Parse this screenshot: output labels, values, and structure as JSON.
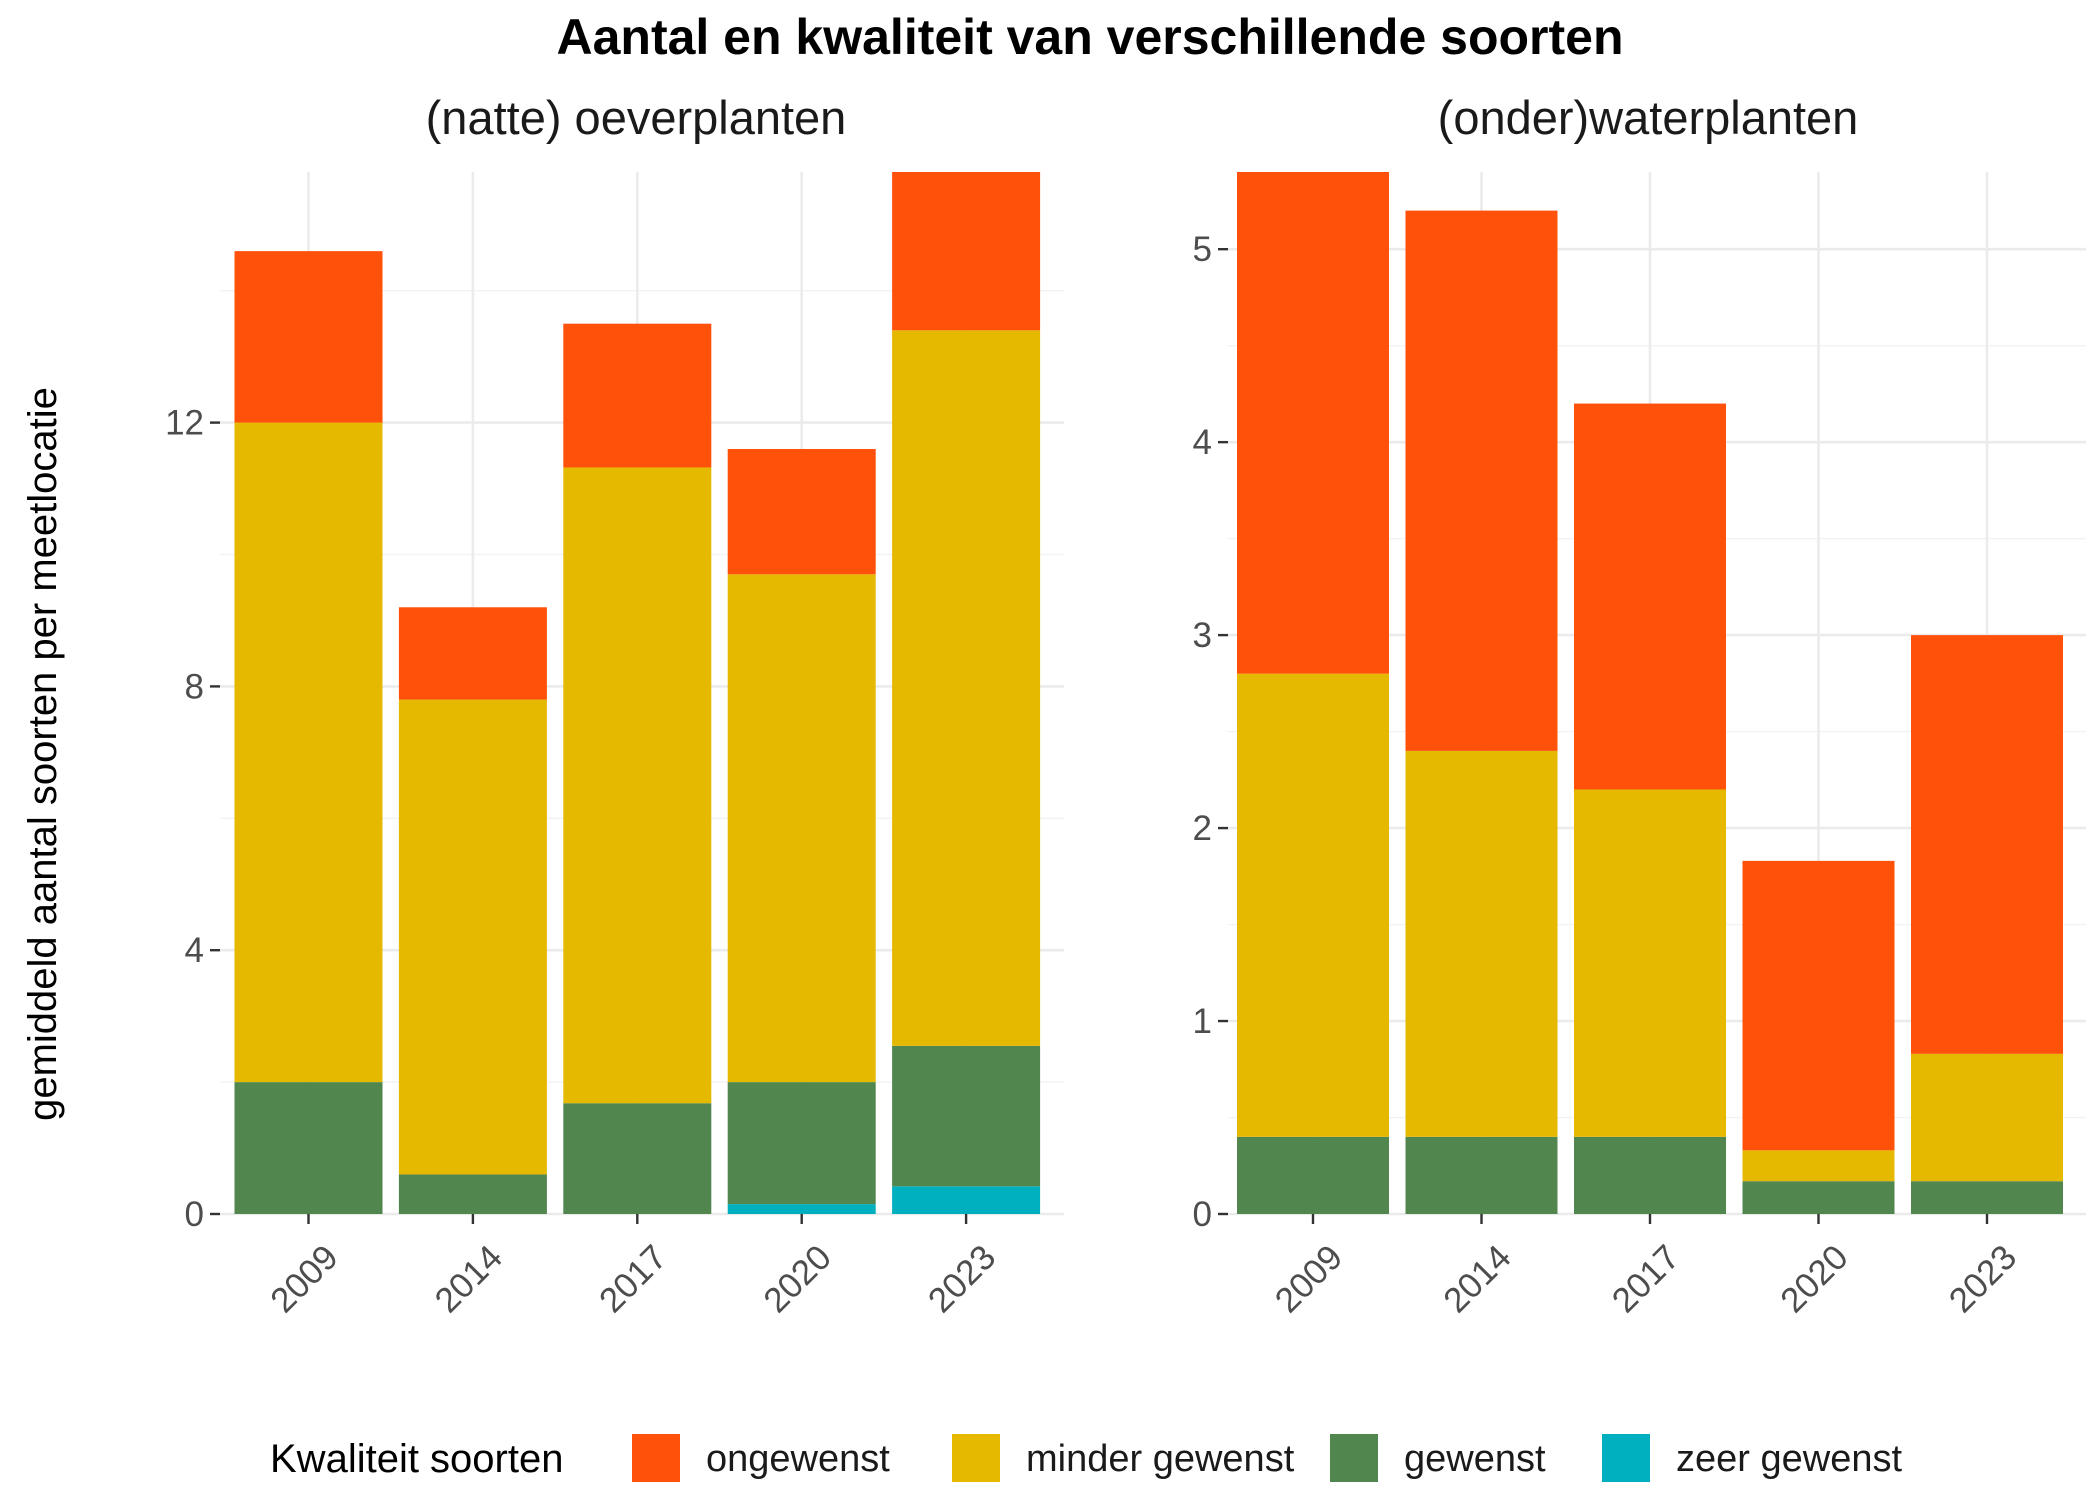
{
  "chart_data": {
    "type": "bar",
    "stacked": true,
    "title": "Aantal en kwaliteit van verschillende soorten",
    "ylabel": "gemiddeld aantal soorten per meetlocatie",
    "legend": {
      "title": "Kwaliteit soorten",
      "position": "bottom",
      "items": [
        {
          "name": "ongewenst",
          "color": "#FF510A"
        },
        {
          "name": "minder gewenst",
          "color": "#E5B900"
        },
        {
          "name": "gewenst",
          "color": "#51874F"
        },
        {
          "name": "zeer gewenst",
          "color": "#00B0BE"
        }
      ]
    },
    "grid": true,
    "panels": [
      {
        "title": "(natte) oeverplanten",
        "categories": [
          "2009",
          "2014",
          "2017",
          "2020",
          "2023"
        ],
        "ylim": [
          0,
          15.8
        ],
        "yticks": [
          0,
          4,
          8,
          12
        ],
        "ytick_labels": [
          "0",
          "4",
          "8",
          "12"
        ],
        "series": [
          {
            "name": "zeer gewenst",
            "values": [
              0,
              0,
              0,
              0.15,
              0.42
            ]
          },
          {
            "name": "gewenst",
            "values": [
              2.0,
              0.6,
              1.68,
              1.85,
              2.13
            ]
          },
          {
            "name": "minder gewenst",
            "values": [
              10.0,
              7.2,
              9.64,
              7.7,
              10.85
            ]
          },
          {
            "name": "ongewenst",
            "values": [
              2.6,
              1.4,
              2.18,
              1.9,
              2.4
            ]
          }
        ]
      },
      {
        "title": "(onder)waterplanten",
        "categories": [
          "2009",
          "2014",
          "2017",
          "2020",
          "2023"
        ],
        "ylim": [
          0,
          5.4
        ],
        "yticks": [
          0,
          1,
          2,
          3,
          4,
          5
        ],
        "ytick_labels": [
          "0",
          "1",
          "2",
          "3",
          "4",
          "5"
        ],
        "series": [
          {
            "name": "zeer gewenst",
            "values": [
              0,
              0,
              0,
              0,
              0
            ]
          },
          {
            "name": "gewenst",
            "values": [
              0.4,
              0.4,
              0.4,
              0.17,
              0.17
            ]
          },
          {
            "name": "minder gewenst",
            "values": [
              2.4,
              2.0,
              1.8,
              0.16,
              0.66
            ]
          },
          {
            "name": "ongewenst",
            "values": [
              2.6,
              2.8,
              2.0,
              1.5,
              2.17
            ]
          }
        ]
      }
    ]
  }
}
